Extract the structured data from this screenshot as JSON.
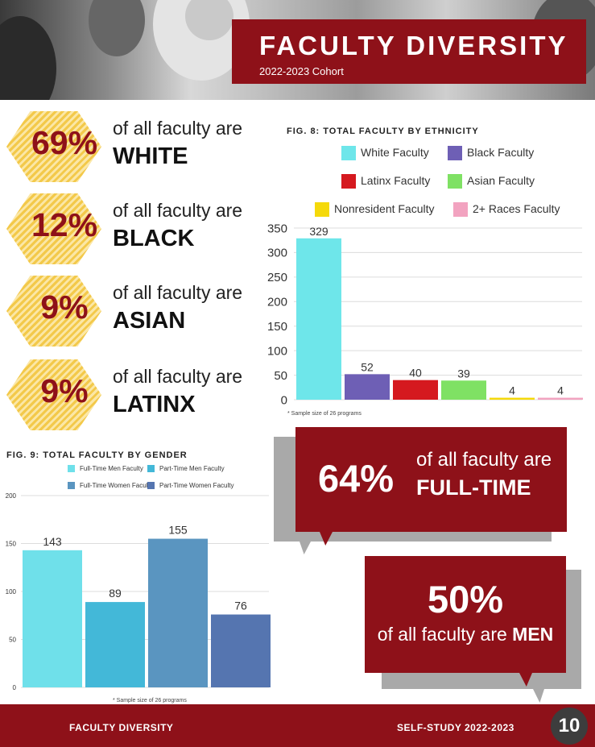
{
  "header": {
    "title": "FACULTY DIVERSITY",
    "subtitle": "2022-2023 Cohort"
  },
  "stats": [
    {
      "pct": "69%",
      "line1": "of all faculty are",
      "line2": "WHITE"
    },
    {
      "pct": "12%",
      "line1": "of all faculty are",
      "line2": "BLACK"
    },
    {
      "pct": "9%",
      "line1": "of all faculty are",
      "line2": "ASIAN"
    },
    {
      "pct": "9%",
      "line1": "of all faculty are",
      "line2": "LATINX"
    }
  ],
  "chart_data": [
    {
      "type": "bar",
      "title": "FIG. 8: TOTAL FACULTY BY ETHNICITY",
      "categories": [
        "White Faculty",
        "Black Faculty",
        "Latinx Faculty",
        "Asian Faculty",
        "Nonresident Faculty",
        "2+ Races Faculty"
      ],
      "values": [
        329,
        52,
        40,
        39,
        4,
        4
      ],
      "colors": [
        "#6ee6ea",
        "#6e5fb5",
        "#d5191f",
        "#7fe164",
        "#f5d90a",
        "#f2a3c0"
      ],
      "ylim": [
        0,
        350
      ],
      "yticks": [
        0,
        50,
        100,
        150,
        200,
        250,
        300,
        350
      ],
      "grid": true,
      "legend": "top",
      "note": "* Sample size of 26 programs"
    },
    {
      "type": "bar",
      "title": "FIG. 9: TOTAL FACULTY BY GENDER",
      "categories": [
        "Full-Time Men Faculty",
        "Part-Time Men Faculty",
        "Full-Time Women Faculty",
        "Part-Time Women Faculty"
      ],
      "values": [
        143,
        89,
        155,
        76
      ],
      "colors": [
        "#6fe0ea",
        "#43b8d8",
        "#5a95c0",
        "#5575b0"
      ],
      "ylim": [
        0,
        200
      ],
      "yticks": [
        0,
        50,
        100,
        150,
        200
      ],
      "grid": true,
      "legend": "top",
      "note": "* Sample size of 26 programs"
    }
  ],
  "callouts": {
    "fulltime": {
      "pct": "64%",
      "line1": "of all faculty are",
      "line2": "FULL-TIME"
    },
    "men": {
      "pct": "50%",
      "line1": "of all faculty are",
      "bold": "MEN"
    }
  },
  "footer": {
    "left": "FACULTY DIVERSITY",
    "right": "SELF-STUDY 2022-2023",
    "page": "10"
  }
}
